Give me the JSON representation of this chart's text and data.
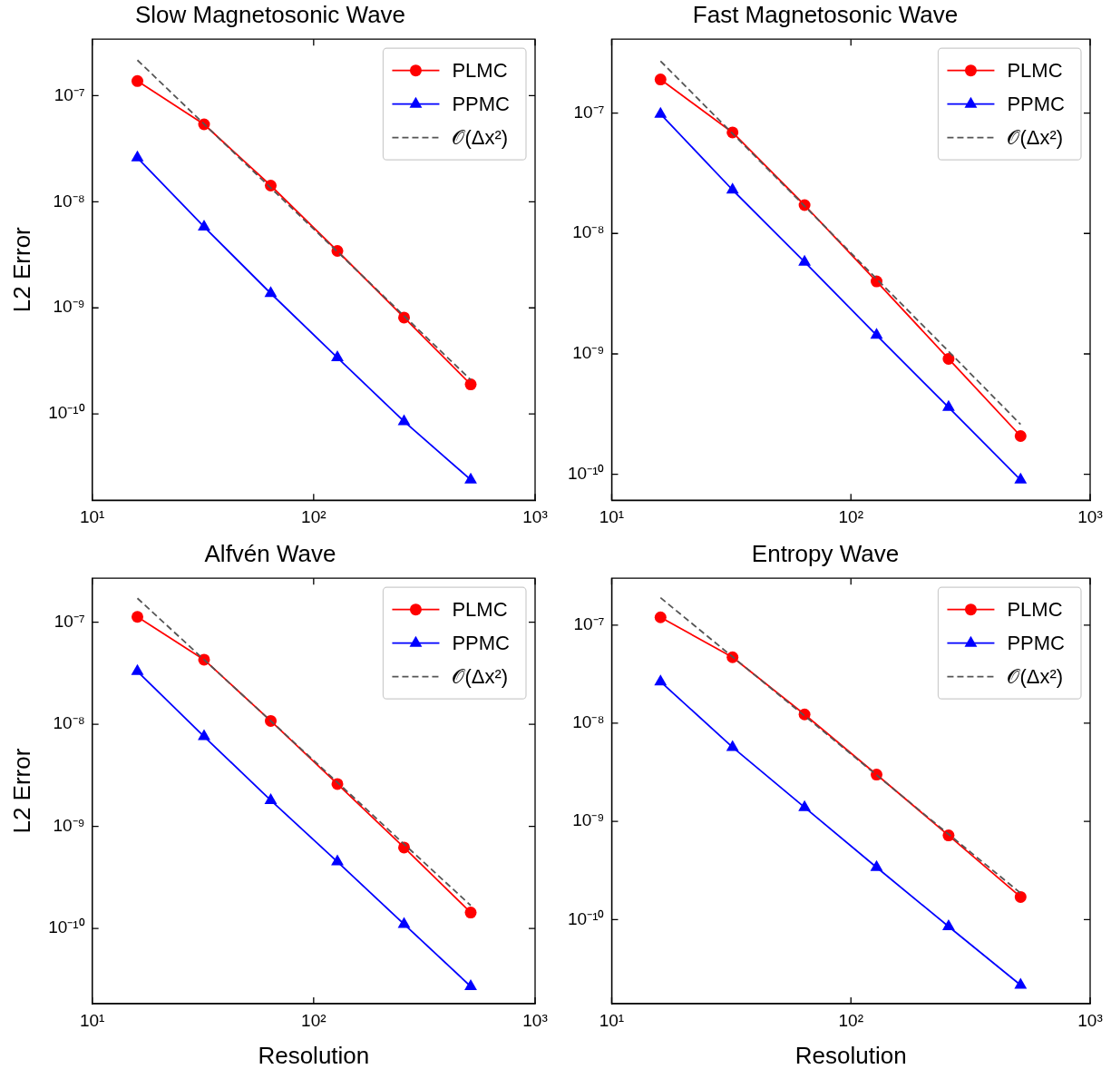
{
  "chart_data": [
    {
      "type": "line",
      "title": "Slow Magnetosonic Wave",
      "ylabel": "L2 Error",
      "log": "xy",
      "legend": "top right",
      "grid": false,
      "x": [
        16,
        32,
        64,
        128,
        256,
        512
      ],
      "xlim": [
        10,
        1000
      ],
      "xticks": [
        {
          "value": 10,
          "label": "10¹"
        },
        {
          "value": 100,
          "label": "10²"
        },
        {
          "value": 1000,
          "label": "10³"
        }
      ],
      "ylim": [
        1.54e-11,
        3.4e-07
      ],
      "yticks": [
        {
          "value": 1e-10,
          "label": "10⁻¹⁰"
        },
        {
          "value": 1e-09,
          "label": "10⁻⁹"
        },
        {
          "value": 1e-08,
          "label": "10⁻⁸"
        },
        {
          "value": 1e-07,
          "label": "10⁻⁷"
        }
      ],
      "series": [
        {
          "name": "PLMC",
          "color": "#ff0000",
          "marker": "circle",
          "line_style": "solid",
          "values": [
            1.37e-07,
            5.36e-08,
            1.42e-08,
            3.44e-09,
            8.1e-10,
            1.9e-10
          ]
        },
        {
          "name": "PPMC",
          "color": "#0000ff",
          "marker": "triangle",
          "line_style": "solid",
          "values": [
            2.6e-08,
            5.8e-09,
            1.37e-09,
            3.4e-10,
            8.5e-11,
            2.4e-11
          ]
        },
        {
          "name": "𝒪(Δx²)",
          "color": "#555555",
          "marker": "none",
          "line_style": "dashed",
          "values": [
            2.16e-07,
            5.4e-08,
            1.35e-08,
            3.38e-09,
            8.4e-10,
            2.1e-10
          ]
        }
      ]
    },
    {
      "type": "line",
      "title": "Fast Magnetosonic Wave",
      "log": "xy",
      "legend": "top right",
      "grid": false,
      "x": [
        16,
        32,
        64,
        128,
        256,
        512
      ],
      "xlim": [
        10,
        1000
      ],
      "xticks": [
        {
          "value": 10,
          "label": "10¹"
        },
        {
          "value": 100,
          "label": "10²"
        },
        {
          "value": 1000,
          "label": "10³"
        }
      ],
      "ylim": [
        6.1e-11,
        4.1e-07
      ],
      "yticks": [
        {
          "value": 1e-10,
          "label": "10⁻¹⁰"
        },
        {
          "value": 1e-09,
          "label": "10⁻⁹"
        },
        {
          "value": 1e-08,
          "label": "10⁻⁸"
        },
        {
          "value": 1e-07,
          "label": "10⁻⁷"
        }
      ],
      "series": [
        {
          "name": "PLMC",
          "color": "#ff0000",
          "marker": "circle",
          "line_style": "solid",
          "values": [
            1.9e-07,
            6.9e-08,
            1.72e-08,
            4e-09,
            9.1e-10,
            2.08e-10
          ]
        },
        {
          "name": "PPMC",
          "color": "#0000ff",
          "marker": "triangle",
          "line_style": "solid",
          "values": [
            9.8e-08,
            2.3e-08,
            5.8e-09,
            1.43e-09,
            3.6e-10,
            9e-11
          ]
        },
        {
          "name": "𝒪(Δx²)",
          "color": "#555555",
          "marker": "none",
          "line_style": "dashed",
          "values": [
            2.7e-07,
            6.75e-08,
            1.69e-08,
            4.2e-09,
            1.05e-09,
            2.6e-10
          ]
        }
      ]
    },
    {
      "type": "line",
      "title": "Alfvén Wave",
      "xlabel": "Resolution",
      "ylabel": "L2 Error",
      "log": "xy",
      "legend": "top right",
      "grid": false,
      "x": [
        16,
        32,
        64,
        128,
        256,
        512
      ],
      "xlim": [
        10,
        1000
      ],
      "xticks": [
        {
          "value": 10,
          "label": "10¹"
        },
        {
          "value": 100,
          "label": "10²"
        },
        {
          "value": 1000,
          "label": "10³"
        }
      ],
      "ylim": [
        1.83e-11,
        2.7e-07
      ],
      "yticks": [
        {
          "value": 1e-10,
          "label": "10⁻¹⁰"
        },
        {
          "value": 1e-09,
          "label": "10⁻⁹"
        },
        {
          "value": 1e-08,
          "label": "10⁻⁸"
        },
        {
          "value": 1e-07,
          "label": "10⁻⁷"
        }
      ],
      "series": [
        {
          "name": "PLMC",
          "color": "#ff0000",
          "marker": "circle",
          "line_style": "solid",
          "values": [
            1.13e-07,
            4.3e-08,
            1.08e-08,
            2.6e-09,
            6.2e-10,
            1.43e-10
          ]
        },
        {
          "name": "PPMC",
          "color": "#0000ff",
          "marker": "triangle",
          "line_style": "solid",
          "values": [
            3.3e-08,
            7.6e-09,
            1.8e-09,
            4.5e-10,
            1.1e-10,
            2.7e-11
          ]
        },
        {
          "name": "𝒪(Δx²)",
          "color": "#555555",
          "marker": "none",
          "line_style": "dashed",
          "values": [
            1.72e-07,
            4.3e-08,
            1.08e-08,
            2.7e-09,
            6.7e-10,
            1.68e-10
          ]
        }
      ]
    },
    {
      "type": "line",
      "title": "Entropy Wave",
      "xlabel": "Resolution",
      "log": "xy",
      "legend": "top right",
      "grid": false,
      "x": [
        16,
        32,
        64,
        128,
        256,
        512
      ],
      "xlim": [
        10,
        1000
      ],
      "xticks": [
        {
          "value": 10,
          "label": "10¹"
        },
        {
          "value": 100,
          "label": "10²"
        },
        {
          "value": 1000,
          "label": "10³"
        }
      ],
      "ylim": [
        1.39e-11,
        3e-07
      ],
      "yticks": [
        {
          "value": 1e-10,
          "label": "10⁻¹⁰"
        },
        {
          "value": 1e-09,
          "label": "10⁻⁹"
        },
        {
          "value": 1e-08,
          "label": "10⁻⁸"
        },
        {
          "value": 1e-07,
          "label": "10⁻⁷"
        }
      ],
      "series": [
        {
          "name": "PLMC",
          "color": "#ff0000",
          "marker": "circle",
          "line_style": "solid",
          "values": [
            1.2e-07,
            4.7e-08,
            1.23e-08,
            3e-09,
            7.2e-10,
            1.7e-10
          ]
        },
        {
          "name": "PPMC",
          "color": "#0000ff",
          "marker": "triangle",
          "line_style": "solid",
          "values": [
            2.65e-08,
            5.7e-09,
            1.39e-09,
            3.4e-10,
            8.5e-11,
            2.15e-11
          ]
        },
        {
          "name": "𝒪(Δx²)",
          "color": "#555555",
          "marker": "none",
          "line_style": "dashed",
          "values": [
            1.9e-07,
            4.75e-08,
            1.19e-08,
            2.97e-09,
            7.4e-10,
            1.86e-10
          ]
        }
      ]
    }
  ]
}
